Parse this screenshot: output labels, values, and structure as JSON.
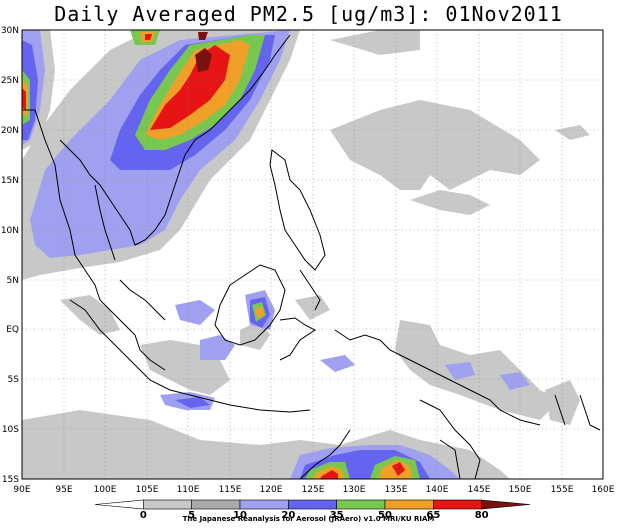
{
  "map": {
    "title": "Daily Averaged PM2.5 [ug/m3]: 01Nov2011",
    "lon_labels": [
      "90E",
      "95E",
      "100E",
      "105E",
      "110E",
      "115E",
      "120E",
      "125E",
      "130E",
      "135E",
      "140E",
      "145E",
      "150E",
      "155E",
      "160E"
    ],
    "lat_labels": [
      "30N",
      "25N",
      "20N",
      "15N",
      "10N",
      "5N",
      "EQ",
      "5S",
      "10S",
      "15S"
    ],
    "extent": {
      "lon_min": 90,
      "lon_max": 160,
      "lat_min": -15,
      "lat_max": 30
    },
    "grid": "dotted",
    "colorbar": {
      "ticks": [
        "0",
        "5",
        "10",
        "20",
        "35",
        "50",
        "65",
        "80"
      ],
      "colors": [
        "#ffffff",
        "#c8c8c8",
        "#aaaaaa",
        "#a0a0f0",
        "#6464f0",
        "#78c850",
        "#f0a028",
        "#e61414",
        "#7a1010"
      ]
    },
    "credit": "The Japanese Reanalysis for Aerosol (JRAero) v1.0 MRI/KU RIAM"
  }
}
